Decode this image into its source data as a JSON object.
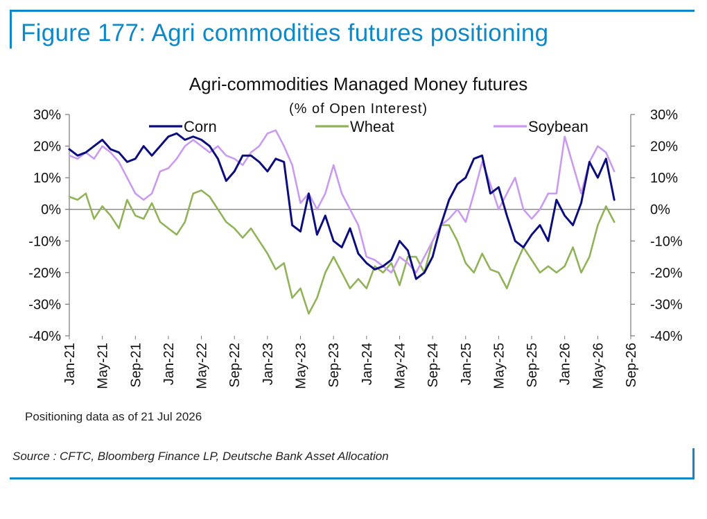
{
  "figure": {
    "title": "Figure 177: Agri commodities futures positioning",
    "note": "Positioning data as of 21 Jul 2026",
    "source": "Source : CFTC, Bloomberg Finance LP, Deutsche Bank Asset Allocation"
  },
  "chart_data": {
    "type": "line",
    "title": "Agri-commodities Managed Money futures",
    "subtitle": "(% of Open Interest)",
    "x_ticks": [
      "Jan-21",
      "May-21",
      "Sep-21",
      "Jan-22",
      "May-22",
      "Sep-22",
      "Jan-23",
      "May-23",
      "Sep-23",
      "Jan-24",
      "May-24",
      "Sep-24",
      "Jan-25",
      "May-25",
      "Sep-25",
      "Jan-26",
      "May-26",
      "Sep-26"
    ],
    "y_ticks_left": [
      "30%",
      "20%",
      "10%",
      "0%",
      "-10%",
      "-20%",
      "-30%",
      "-40%"
    ],
    "y_ticks_right": [
      "30%",
      "20%",
      "10%",
      "0%",
      "-10%",
      "-20%",
      "-30%",
      "-40%"
    ],
    "ylim": [
      -40,
      30
    ],
    "xlim": [
      "2021-01",
      "2026-09"
    ],
    "grid": false,
    "legend_position": "top",
    "series": [
      {
        "name": "Corn",
        "color": "#0b0d7e",
        "x": [
          "2021-01",
          "2021-02",
          "2021-03",
          "2021-04",
          "2021-05",
          "2021-06",
          "2021-07",
          "2021-08",
          "2021-09",
          "2021-10",
          "2021-11",
          "2021-12",
          "2022-01",
          "2022-02",
          "2022-03",
          "2022-04",
          "2022-05",
          "2022-06",
          "2022-07",
          "2022-08",
          "2022-09",
          "2022-10",
          "2022-11",
          "2022-12",
          "2023-01",
          "2023-02",
          "2023-03",
          "2023-04",
          "2023-05",
          "2023-06",
          "2023-07",
          "2023-08",
          "2023-09",
          "2023-10",
          "2023-11",
          "2023-12",
          "2024-01",
          "2024-02",
          "2024-03",
          "2024-04",
          "2024-05",
          "2024-06",
          "2024-07",
          "2024-08",
          "2024-09",
          "2024-10",
          "2024-11",
          "2024-12",
          "2025-01",
          "2025-02",
          "2025-03",
          "2025-04",
          "2025-05",
          "2025-06",
          "2025-07",
          "2025-08",
          "2025-09",
          "2025-10",
          "2025-11",
          "2025-12",
          "2026-01",
          "2026-02",
          "2026-03",
          "2026-04",
          "2026-05",
          "2026-06",
          "2026-07"
        ],
        "values": [
          19,
          17,
          18,
          20,
          22,
          19,
          18,
          15,
          16,
          20,
          17,
          20,
          23,
          24,
          22,
          23,
          22,
          20,
          16,
          9,
          12,
          17,
          17,
          15,
          12,
          16,
          15,
          -5,
          -7,
          5,
          -8,
          -2,
          -10,
          -12,
          -6,
          -14,
          -17,
          -19,
          -18,
          -16,
          -10,
          -13,
          -22,
          -20,
          -15,
          -5,
          3,
          8,
          10,
          16,
          17,
          5,
          7,
          -2,
          -10,
          -12,
          -8,
          -5,
          -10,
          3,
          -2,
          -5,
          2,
          15,
          10,
          16,
          3
        ]
      },
      {
        "name": "Wheat",
        "color": "#8fb356",
        "x": [
          "2021-01",
          "2021-02",
          "2021-03",
          "2021-04",
          "2021-05",
          "2021-06",
          "2021-07",
          "2021-08",
          "2021-09",
          "2021-10",
          "2021-11",
          "2021-12",
          "2022-01",
          "2022-02",
          "2022-03",
          "2022-04",
          "2022-05",
          "2022-06",
          "2022-07",
          "2022-08",
          "2022-09",
          "2022-10",
          "2022-11",
          "2022-12",
          "2023-01",
          "2023-02",
          "2023-03",
          "2023-04",
          "2023-05",
          "2023-06",
          "2023-07",
          "2023-08",
          "2023-09",
          "2023-10",
          "2023-11",
          "2023-12",
          "2024-01",
          "2024-02",
          "2024-03",
          "2024-04",
          "2024-05",
          "2024-06",
          "2024-07",
          "2024-08",
          "2024-09",
          "2024-10",
          "2024-11",
          "2024-12",
          "2025-01",
          "2025-02",
          "2025-03",
          "2025-04",
          "2025-05",
          "2025-06",
          "2025-07",
          "2025-08",
          "2025-09",
          "2025-10",
          "2025-11",
          "2025-12",
          "2026-01",
          "2026-02",
          "2026-03",
          "2026-04",
          "2026-05",
          "2026-06",
          "2026-07"
        ],
        "values": [
          4,
          3,
          5,
          -3,
          1,
          -2,
          -6,
          3,
          -2,
          -3,
          2,
          -4,
          -6,
          -8,
          -4,
          5,
          6,
          4,
          0,
          -4,
          -6,
          -9,
          -6,
          -10,
          -14,
          -19,
          -17,
          -28,
          -25,
          -33,
          -28,
          -20,
          -15,
          -20,
          -25,
          -22,
          -25,
          -18,
          -20,
          -17,
          -24,
          -15,
          -15,
          -20,
          -10,
          -5,
          -5,
          -10,
          -17,
          -20,
          -14,
          -19,
          -20,
          -25,
          -18,
          -12,
          -16,
          -20,
          -18,
          -20,
          -18,
          -12,
          -20,
          -15,
          -5,
          1,
          -4
        ]
      },
      {
        "name": "Soybean",
        "color": "#c99af0",
        "x": [
          "2021-01",
          "2021-02",
          "2021-03",
          "2021-04",
          "2021-05",
          "2021-06",
          "2021-07",
          "2021-08",
          "2021-09",
          "2021-10",
          "2021-11",
          "2021-12",
          "2022-01",
          "2022-02",
          "2022-03",
          "2022-04",
          "2022-05",
          "2022-06",
          "2022-07",
          "2022-08",
          "2022-09",
          "2022-10",
          "2022-11",
          "2022-12",
          "2023-01",
          "2023-02",
          "2023-03",
          "2023-04",
          "2023-05",
          "2023-06",
          "2023-07",
          "2023-08",
          "2023-09",
          "2023-10",
          "2023-11",
          "2023-12",
          "2024-01",
          "2024-02",
          "2024-03",
          "2024-04",
          "2024-05",
          "2024-06",
          "2024-07",
          "2024-08",
          "2024-09",
          "2024-10",
          "2024-11",
          "2024-12",
          "2025-01",
          "2025-02",
          "2025-03",
          "2025-04",
          "2025-05",
          "2025-06",
          "2025-07",
          "2025-08",
          "2025-09",
          "2025-10",
          "2025-11",
          "2025-12",
          "2026-01",
          "2026-02",
          "2026-03",
          "2026-04",
          "2026-05",
          "2026-06",
          "2026-07"
        ],
        "values": [
          17,
          16,
          18,
          16,
          20,
          18,
          15,
          10,
          5,
          3,
          5,
          12,
          13,
          16,
          20,
          22,
          20,
          18,
          20,
          17,
          16,
          14,
          18,
          20,
          24,
          25,
          20,
          14,
          2,
          5,
          0,
          5,
          14,
          5,
          0,
          -5,
          -15,
          -16,
          -18,
          -20,
          -15,
          -17,
          -20,
          -15,
          -10,
          -5,
          -3,
          0,
          -4,
          5,
          15,
          8,
          0,
          5,
          10,
          0,
          -3,
          0,
          5,
          5,
          23,
          14,
          5,
          15,
          20,
          18,
          12
        ]
      }
    ]
  }
}
